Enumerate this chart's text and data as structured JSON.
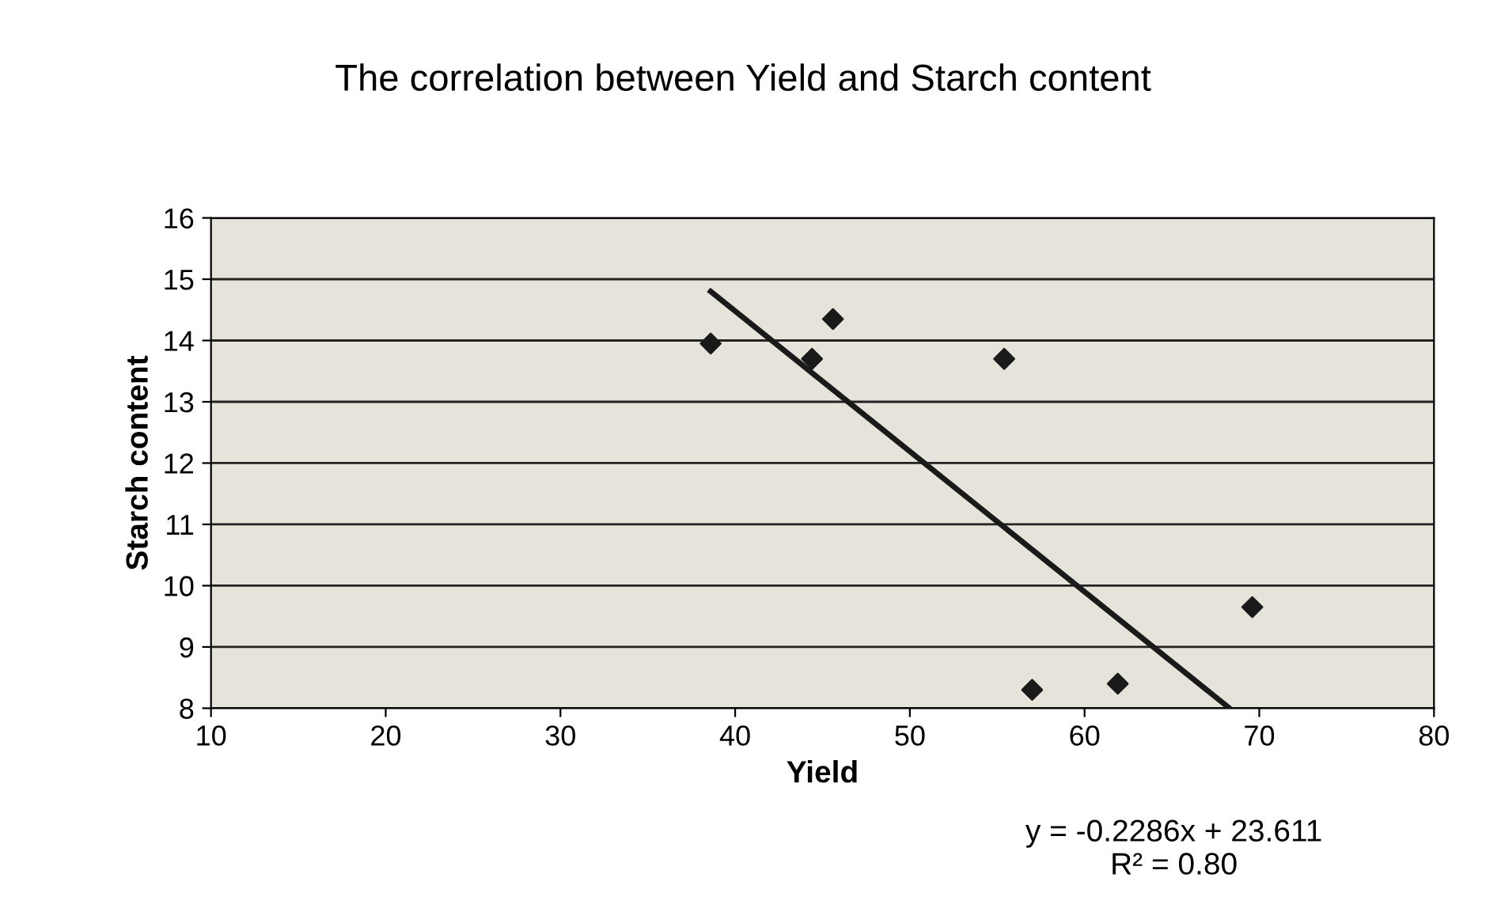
{
  "chart_data": {
    "type": "scatter",
    "title": "The correlation between Yield and Starch content",
    "xlabel": "Yield",
    "ylabel": "Starch content",
    "series": [
      {
        "color": "#1a1a1a",
        "marker": "diamond",
        "x": [
          38.6,
          44.4,
          45.6,
          55.4,
          57.0,
          61.9,
          69.6
        ],
        "values": [
          13.95,
          13.7,
          14.35,
          13.7,
          8.3,
          8.4,
          9.65
        ]
      },
      {
        "type": "line",
        "color": "#1a1a1a",
        "marker": "none",
        "line_style": "solid",
        "x": [
          38.6,
          68.3
        ],
        "values": [
          14.8,
          8.0
        ]
      }
    ],
    "annotations": [
      "y = -0.2286x + 23.611\nR² = 0.80"
    ],
    "xlim": [
      10,
      80
    ],
    "xticks": [
      10,
      20,
      30,
      40,
      50,
      60,
      70,
      80
    ],
    "ylim": [
      8,
      16
    ],
    "yticks": [
      8,
      9,
      10,
      11,
      12,
      13,
      14,
      15,
      16
    ],
    "grid": "y",
    "legend": false
  }
}
